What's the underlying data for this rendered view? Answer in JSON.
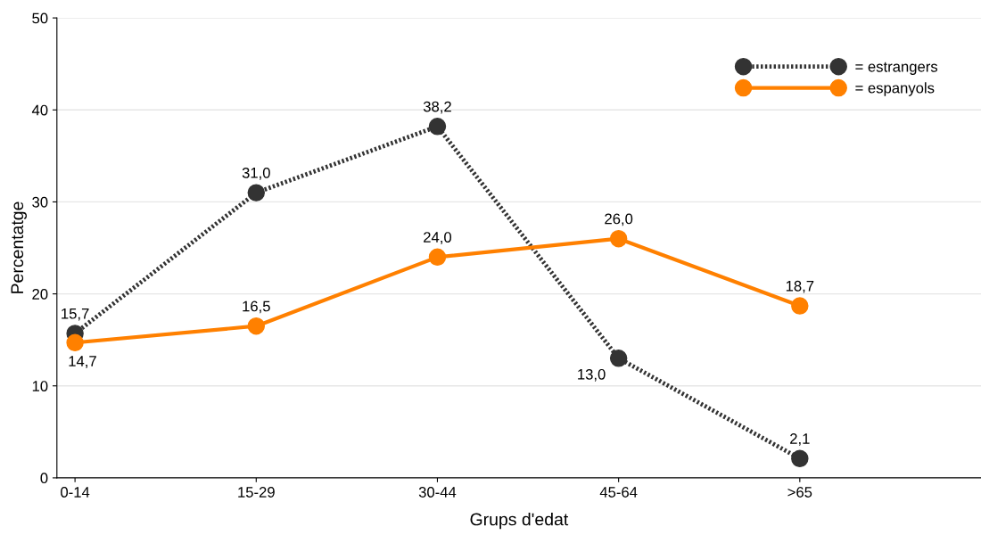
{
  "chart_data": {
    "type": "line",
    "xlabel": "Grups d'edat",
    "ylabel": "Percentatge",
    "categories": [
      "0-14",
      "15-29",
      "30-44",
      "45-64",
      ">65"
    ],
    "series": [
      {
        "name": "= estrangers",
        "color": "#333333",
        "line_style": "dotted",
        "values": [
          15.7,
          31.0,
          38.2,
          13.0,
          2.1
        ],
        "value_labels": [
          "15,7",
          "31,0",
          "38,2",
          "13,0",
          "2,1"
        ]
      },
      {
        "name": "= espanyols",
        "color": "#ff8000",
        "line_style": "solid",
        "values": [
          14.7,
          16.5,
          24.0,
          26.0,
          18.7
        ],
        "value_labels": [
          "14,7",
          "16,5",
          "24,0",
          "26,0",
          "18,7"
        ]
      }
    ],
    "ylim": [
      0,
      50
    ],
    "yticks": [
      0,
      10,
      20,
      30,
      40,
      50
    ],
    "grid": "y",
    "legend": "top right",
    "marker": "circle"
  }
}
